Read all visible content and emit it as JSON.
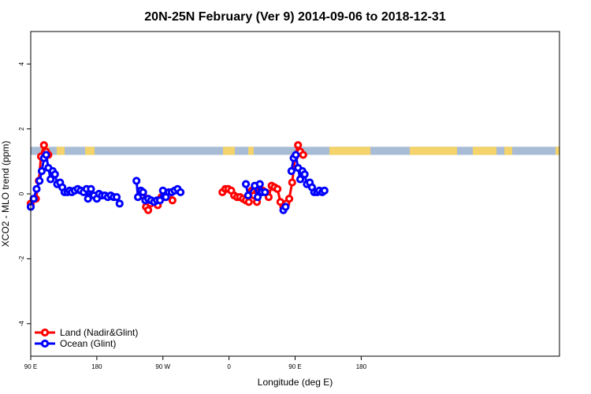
{
  "chart_data": {
    "type": "line",
    "title": "20N-25N February (Ver 9)   2014-09-06 to 2018-12-31",
    "xlabel": "Longitude (deg E)",
    "ylabel": "XCO2 - MLO trend (ppm)",
    "xlim": [
      90,
      450
    ],
    "ylim": [
      -5,
      5
    ],
    "x_ticks": [
      {
        "value": 90,
        "label": "90 E"
      },
      {
        "value": 180,
        "label": "180"
      },
      {
        "value": 270,
        "label": "90 W"
      },
      {
        "value": 360,
        "label": "0"
      },
      {
        "value": 450,
        "label": "90 E"
      },
      {
        "value": 540,
        "label": "180"
      }
    ],
    "y_ticks": [
      {
        "value": -4,
        "label": "-4"
      },
      {
        "value": -2,
        "label": "-2"
      },
      {
        "value": 0,
        "label": "0"
      },
      {
        "value": 2,
        "label": "2"
      },
      {
        "value": 4,
        "label": "4"
      }
    ],
    "grid": false,
    "legend_position": "bottom-left",
    "map_strip": {
      "ymin": 1.2,
      "ymax": 1.45,
      "ocean_color": "#a9bcd6",
      "land_color": "#f3d36a"
    },
    "series": [
      {
        "name": "Land (Nadir&Glint)",
        "color": "#ff0000",
        "segments": [
          [
            [
              90,
              -0.3
            ],
            [
              97,
              -0.15
            ],
            [
              101,
              0.4
            ],
            [
              104,
              1.15
            ],
            [
              108,
              1.5
            ],
            [
              111,
              1.3
            ],
            [
              114,
              1.2
            ]
          ],
          [
            [
              243,
              -0.05
            ],
            [
              247,
              -0.4
            ],
            [
              250,
              -0.5
            ],
            [
              253,
              -0.3
            ]
          ],
          [
            [
              263,
              -0.35
            ],
            [
              268,
              -0.1
            ],
            [
              273,
              -0.1
            ],
            [
              278,
              -0.05
            ],
            [
              283,
              -0.2
            ]
          ],
          [
            [
              351,
              0.05
            ],
            [
              355,
              0.15
            ],
            [
              359,
              0.15
            ],
            [
              363,
              0.1
            ],
            [
              367,
              -0.05
            ],
            [
              371,
              -0.1
            ],
            [
              375,
              -0.1
            ],
            [
              379,
              -0.15
            ],
            [
              383,
              -0.2
            ],
            [
              387,
              -0.25
            ],
            [
              391,
              0.1
            ],
            [
              394,
              -0.05
            ],
            [
              398,
              -0.25
            ],
            [
              402,
              0.15
            ],
            [
              406,
              0.1
            ],
            [
              410,
              0.05
            ],
            [
              414,
              -0.1
            ],
            [
              418,
              0.25
            ],
            [
              422,
              0.2
            ],
            [
              426,
              0.15
            ],
            [
              430,
              -0.25
            ],
            [
              434,
              -0.4
            ],
            [
              438,
              -0.3
            ],
            [
              442,
              -0.15
            ],
            [
              446,
              0.35
            ],
            [
              450,
              1.15
            ],
            [
              454,
              1.5
            ],
            [
              457,
              1.3
            ],
            [
              461,
              1.2
            ]
          ]
        ]
      },
      {
        "name": "Ocean (Glint)",
        "color": "#0000ff",
        "segments": [
          [
            [
              90,
              -0.4
            ],
            [
              94,
              -0.15
            ],
            [
              98,
              0.15
            ],
            [
              102,
              0.4
            ],
            [
              105,
              0.7
            ],
            [
              108,
              1.1
            ],
            [
              111,
              1.2
            ],
            [
              114,
              0.8
            ],
            [
              117,
              0.45
            ],
            [
              120,
              0.7
            ],
            [
              123,
              0.6
            ],
            [
              126,
              0.3
            ],
            [
              130,
              0.35
            ],
            [
              133,
              0.2
            ],
            [
              136,
              0.05
            ],
            [
              140,
              0.05
            ],
            [
              143,
              0.1
            ],
            [
              146,
              0.05
            ],
            [
              150,
              0.1
            ],
            [
              154,
              0.15
            ],
            [
              158,
              0.1
            ],
            [
              162,
              0.05
            ],
            [
              166,
              0.15
            ],
            [
              168,
              -0.15
            ],
            [
              172,
              0.15
            ],
            [
              176,
              -0.05
            ],
            [
              180,
              -0.15
            ],
            [
              183,
              0.0
            ],
            [
              187,
              -0.05
            ],
            [
              191,
              -0.05
            ],
            [
              195,
              -0.1
            ],
            [
              199,
              -0.05
            ],
            [
              203,
              -0.1
            ],
            [
              207,
              -0.1
            ],
            [
              211,
              -0.3
            ]
          ],
          [
            [
              234,
              0.4
            ],
            [
              236,
              -0.1
            ],
            [
              240,
              0.1
            ],
            [
              243,
              0.05
            ],
            [
              246,
              -0.2
            ],
            [
              250,
              -0.15
            ],
            [
              254,
              -0.2
            ],
            [
              258,
              -0.25
            ],
            [
              262,
              -0.2
            ],
            [
              266,
              -0.2
            ],
            [
              270,
              0.1
            ],
            [
              274,
              -0.1
            ],
            [
              278,
              0.05
            ],
            [
              282,
              0.05
            ],
            [
              286,
              0.1
            ],
            [
              290,
              0.15
            ],
            [
              294,
              0.05
            ]
          ],
          [
            [
              383,
              0.3
            ],
            [
              386,
              -0.05
            ],
            [
              395,
              0.25
            ],
            [
              399,
              -0.1
            ],
            [
              402,
              0.3
            ],
            [
              405,
              0.05
            ],
            [
              409,
              0.05
            ]
          ],
          [
            [
              434,
              -0.5
            ],
            [
              437,
              -0.4
            ]
          ],
          [
            [
              445,
              0.7
            ],
            [
              448,
              1.1
            ],
            [
              451,
              1.2
            ],
            [
              454,
              0.8
            ],
            [
              457,
              0.45
            ],
            [
              460,
              0.7
            ],
            [
              463,
              0.6
            ],
            [
              466,
              0.3
            ],
            [
              470,
              0.35
            ],
            [
              473,
              0.2
            ],
            [
              476,
              0.05
            ],
            [
              480,
              0.05
            ],
            [
              483,
              0.1
            ],
            [
              487,
              0.05
            ],
            [
              490,
              0.1
            ]
          ]
        ]
      }
    ]
  }
}
